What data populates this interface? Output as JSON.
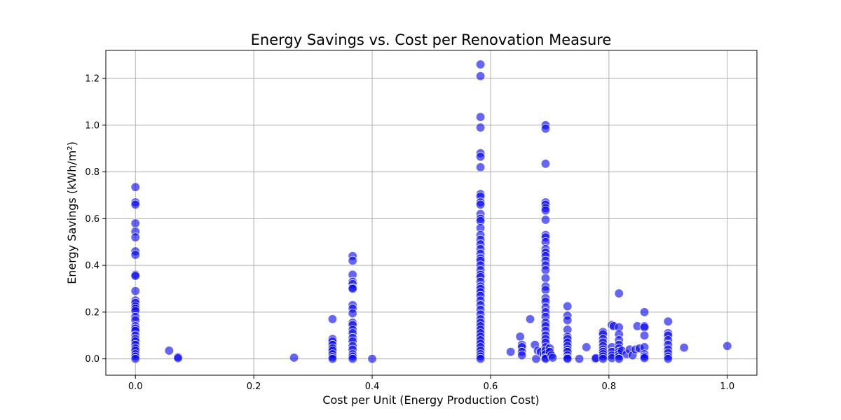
{
  "colors": {
    "marker": "#0000ee",
    "grid": "#b0b0b0",
    "frame": "#000000"
  },
  "chart_data": {
    "type": "scatter",
    "title": "Energy Savings vs. Cost per Renovation Measure",
    "xlabel": "Cost per Unit (Energy Production Cost)",
    "ylabel": "Energy Savings (kWh/m²)",
    "xlim": [
      -0.05,
      1.05
    ],
    "ylim": [
      -0.07,
      1.32
    ],
    "xticks": [
      0.0,
      0.2,
      0.4,
      0.6,
      0.8,
      1.0
    ],
    "xtick_labels": [
      "0.0",
      "0.2",
      "0.4",
      "0.6",
      "0.8",
      "1.0"
    ],
    "yticks": [
      0.0,
      0.2,
      0.4,
      0.6,
      0.8,
      1.0,
      1.2
    ],
    "ytick_labels": [
      "0.0",
      "0.2",
      "0.4",
      "0.6",
      "0.8",
      "1.0",
      "1.2"
    ],
    "grid": true,
    "marker_alpha": 0.6,
    "points": [
      [
        0.0,
        0.735
      ],
      [
        0.0,
        0.67
      ],
      [
        0.0,
        0.66
      ],
      [
        0.0,
        0.58
      ],
      [
        0.0,
        0.545
      ],
      [
        0.0,
        0.52
      ],
      [
        0.0,
        0.46
      ],
      [
        0.0,
        0.445
      ],
      [
        0.0,
        0.36
      ],
      [
        0.0,
        0.355
      ],
      [
        0.0,
        0.29
      ],
      [
        0.0,
        0.25
      ],
      [
        0.0,
        0.24
      ],
      [
        0.0,
        0.225
      ],
      [
        0.0,
        0.215
      ],
      [
        0.0,
        0.205
      ],
      [
        0.0,
        0.18
      ],
      [
        0.0,
        0.165
      ],
      [
        0.0,
        0.14
      ],
      [
        0.0,
        0.13
      ],
      [
        0.0,
        0.12
      ],
      [
        0.0,
        0.1
      ],
      [
        0.0,
        0.085
      ],
      [
        0.0,
        0.075
      ],
      [
        0.0,
        0.06
      ],
      [
        0.0,
        0.045
      ],
      [
        0.0,
        0.035
      ],
      [
        0.0,
        0.02
      ],
      [
        0.0,
        0.01
      ],
      [
        0.0,
        0.0
      ],
      [
        0.057,
        0.035
      ],
      [
        0.072,
        0.008
      ],
      [
        0.072,
        0.003
      ],
      [
        0.268,
        0.005
      ],
      [
        0.333,
        0.17
      ],
      [
        0.333,
        0.085
      ],
      [
        0.333,
        0.075
      ],
      [
        0.333,
        0.06
      ],
      [
        0.333,
        0.045
      ],
      [
        0.333,
        0.035
      ],
      [
        0.333,
        0.02
      ],
      [
        0.333,
        0.008
      ],
      [
        0.333,
        0.0
      ],
      [
        0.367,
        0.44
      ],
      [
        0.367,
        0.42
      ],
      [
        0.367,
        0.36
      ],
      [
        0.367,
        0.33
      ],
      [
        0.367,
        0.32
      ],
      [
        0.367,
        0.305
      ],
      [
        0.367,
        0.3
      ],
      [
        0.367,
        0.23
      ],
      [
        0.367,
        0.215
      ],
      [
        0.367,
        0.195
      ],
      [
        0.367,
        0.155
      ],
      [
        0.367,
        0.145
      ],
      [
        0.367,
        0.125
      ],
      [
        0.367,
        0.11
      ],
      [
        0.367,
        0.09
      ],
      [
        0.367,
        0.075
      ],
      [
        0.367,
        0.055
      ],
      [
        0.367,
        0.04
      ],
      [
        0.367,
        0.02
      ],
      [
        0.367,
        0.01
      ],
      [
        0.367,
        0.0
      ],
      [
        0.4,
        0.0
      ],
      [
        0.583,
        1.26
      ],
      [
        0.583,
        1.21
      ],
      [
        0.583,
        1.035
      ],
      [
        0.583,
        0.99
      ],
      [
        0.583,
        0.88
      ],
      [
        0.583,
        0.865
      ],
      [
        0.583,
        0.82
      ],
      [
        0.583,
        0.705
      ],
      [
        0.583,
        0.695
      ],
      [
        0.583,
        0.67
      ],
      [
        0.583,
        0.66
      ],
      [
        0.583,
        0.62
      ],
      [
        0.583,
        0.6
      ],
      [
        0.583,
        0.59
      ],
      [
        0.583,
        0.56
      ],
      [
        0.583,
        0.53
      ],
      [
        0.583,
        0.51
      ],
      [
        0.583,
        0.49
      ],
      [
        0.583,
        0.47
      ],
      [
        0.583,
        0.45
      ],
      [
        0.583,
        0.43
      ],
      [
        0.583,
        0.42
      ],
      [
        0.583,
        0.4
      ],
      [
        0.583,
        0.38
      ],
      [
        0.583,
        0.36
      ],
      [
        0.583,
        0.35
      ],
      [
        0.583,
        0.33
      ],
      [
        0.583,
        0.31
      ],
      [
        0.583,
        0.3
      ],
      [
        0.583,
        0.285
      ],
      [
        0.583,
        0.27
      ],
      [
        0.583,
        0.25
      ],
      [
        0.583,
        0.23
      ],
      [
        0.583,
        0.21
      ],
      [
        0.583,
        0.19
      ],
      [
        0.583,
        0.17
      ],
      [
        0.583,
        0.155
      ],
      [
        0.583,
        0.14
      ],
      [
        0.583,
        0.125
      ],
      [
        0.583,
        0.11
      ],
      [
        0.583,
        0.095
      ],
      [
        0.583,
        0.08
      ],
      [
        0.583,
        0.065
      ],
      [
        0.583,
        0.05
      ],
      [
        0.583,
        0.035
      ],
      [
        0.583,
        0.02
      ],
      [
        0.583,
        0.01
      ],
      [
        0.583,
        0.0
      ],
      [
        0.634,
        0.03
      ],
      [
        0.65,
        0.095
      ],
      [
        0.653,
        0.06
      ],
      [
        0.653,
        0.05
      ],
      [
        0.653,
        0.03
      ],
      [
        0.653,
        0.015
      ],
      [
        0.667,
        0.17
      ],
      [
        0.675,
        0.06
      ],
      [
        0.677,
        0.0
      ],
      [
        0.68,
        0.035
      ],
      [
        0.685,
        0.03
      ],
      [
        0.69,
        0.02
      ],
      [
        0.693,
        1.0
      ],
      [
        0.693,
        0.985
      ],
      [
        0.693,
        0.835
      ],
      [
        0.693,
        0.67
      ],
      [
        0.693,
        0.66
      ],
      [
        0.693,
        0.645
      ],
      [
        0.693,
        0.635
      ],
      [
        0.693,
        0.595
      ],
      [
        0.693,
        0.53
      ],
      [
        0.693,
        0.52
      ],
      [
        0.693,
        0.5
      ],
      [
        0.693,
        0.47
      ],
      [
        0.693,
        0.455
      ],
      [
        0.693,
        0.44
      ],
      [
        0.693,
        0.42
      ],
      [
        0.693,
        0.4
      ],
      [
        0.693,
        0.38
      ],
      [
        0.693,
        0.345
      ],
      [
        0.693,
        0.31
      ],
      [
        0.693,
        0.295
      ],
      [
        0.693,
        0.26
      ],
      [
        0.693,
        0.245
      ],
      [
        0.693,
        0.22
      ],
      [
        0.693,
        0.2
      ],
      [
        0.693,
        0.18
      ],
      [
        0.693,
        0.155
      ],
      [
        0.693,
        0.14
      ],
      [
        0.693,
        0.12
      ],
      [
        0.693,
        0.1
      ],
      [
        0.693,
        0.085
      ],
      [
        0.693,
        0.07
      ],
      [
        0.693,
        0.05
      ],
      [
        0.693,
        0.035
      ],
      [
        0.693,
        0.02
      ],
      [
        0.693,
        0.005
      ],
      [
        0.693,
        0.0
      ],
      [
        0.7,
        0.045
      ],
      [
        0.7,
        0.03
      ],
      [
        0.703,
        0.015
      ],
      [
        0.705,
        0.005
      ],
      [
        0.73,
        0.225
      ],
      [
        0.73,
        0.185
      ],
      [
        0.73,
        0.165
      ],
      [
        0.73,
        0.125
      ],
      [
        0.73,
        0.095
      ],
      [
        0.73,
        0.085
      ],
      [
        0.73,
        0.07
      ],
      [
        0.73,
        0.055
      ],
      [
        0.73,
        0.04
      ],
      [
        0.73,
        0.03
      ],
      [
        0.73,
        0.015
      ],
      [
        0.73,
        0.005
      ],
      [
        0.73,
        0.0
      ],
      [
        0.75,
        0.0
      ],
      [
        0.762,
        0.05
      ],
      [
        0.777,
        0.0
      ],
      [
        0.778,
        0.003
      ],
      [
        0.79,
        0.115
      ],
      [
        0.79,
        0.105
      ],
      [
        0.79,
        0.085
      ],
      [
        0.79,
        0.07
      ],
      [
        0.79,
        0.055
      ],
      [
        0.79,
        0.04
      ],
      [
        0.79,
        0.03
      ],
      [
        0.79,
        0.02
      ],
      [
        0.79,
        0.01
      ],
      [
        0.79,
        0.0
      ],
      [
        0.805,
        0.145
      ],
      [
        0.808,
        0.14
      ],
      [
        0.805,
        0.05
      ],
      [
        0.805,
        0.03
      ],
      [
        0.805,
        0.015
      ],
      [
        0.805,
        0.003
      ],
      [
        0.817,
        0.28
      ],
      [
        0.817,
        0.135
      ],
      [
        0.817,
        0.105
      ],
      [
        0.817,
        0.08
      ],
      [
        0.817,
        0.06
      ],
      [
        0.817,
        0.045
      ],
      [
        0.817,
        0.03
      ],
      [
        0.817,
        0.02
      ],
      [
        0.817,
        0.01
      ],
      [
        0.817,
        0.0
      ],
      [
        0.822,
        0.035
      ],
      [
        0.83,
        0.02
      ],
      [
        0.835,
        0.04
      ],
      [
        0.84,
        0.015
      ],
      [
        0.845,
        0.04
      ],
      [
        0.848,
        0.14
      ],
      [
        0.852,
        0.045
      ],
      [
        0.86,
        0.2
      ],
      [
        0.86,
        0.14
      ],
      [
        0.86,
        0.135
      ],
      [
        0.86,
        0.1
      ],
      [
        0.86,
        0.05
      ],
      [
        0.86,
        0.02
      ],
      [
        0.86,
        0.01
      ],
      [
        0.86,
        0.003
      ],
      [
        0.9,
        0.16
      ],
      [
        0.9,
        0.11
      ],
      [
        0.9,
        0.1
      ],
      [
        0.9,
        0.08
      ],
      [
        0.9,
        0.06
      ],
      [
        0.9,
        0.04
      ],
      [
        0.9,
        0.025
      ],
      [
        0.9,
        0.01
      ],
      [
        0.9,
        0.0
      ],
      [
        0.927,
        0.048
      ],
      [
        1.0,
        0.055
      ]
    ]
  }
}
